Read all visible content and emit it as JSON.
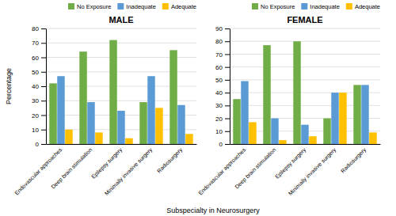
{
  "chart_data": [
    {
      "type": "bar",
      "title": "MALE",
      "xlabel": "Subspecialty in Neurosurgery",
      "ylabel": "Percentage",
      "categories": [
        "Endovascular approaches",
        "Deep brain stimulation",
        "Epilepsy surgery",
        "Minimally invasive surgery",
        "Radiosurgery"
      ],
      "series": [
        {
          "name": "No Exposure",
          "color": "#70ad47",
          "values": [
            42,
            64,
            72,
            29,
            65
          ]
        },
        {
          "name": "Inadequate",
          "color": "#5b9bd5",
          "values": [
            47,
            29,
            23,
            47,
            27
          ]
        },
        {
          "name": "Adequate",
          "color": "#ffc000",
          "values": [
            10,
            8,
            4,
            25,
            7
          ]
        }
      ],
      "ylim": [
        0,
        80
      ],
      "yticks": [
        0,
        10,
        20,
        30,
        40,
        50,
        60,
        70,
        80
      ],
      "grid": true,
      "legend": "upper right"
    },
    {
      "type": "bar",
      "title": "FEMALE",
      "categories": [
        "Endovascular approaches",
        "Deep brain stimulation",
        "Epilepsy surgery",
        "Minimally invasive surgery",
        "Radiosurgery"
      ],
      "series": [
        {
          "name": "No Exposure",
          "color": "#70ad47",
          "values": [
            35,
            77,
            80,
            20,
            46
          ]
        },
        {
          "name": "Inadequate",
          "color": "#5b9bd5",
          "values": [
            49,
            20,
            15,
            40,
            46
          ]
        },
        {
          "name": "Adequate",
          "color": "#ffc000",
          "values": [
            17,
            3,
            6,
            40,
            9
          ]
        }
      ],
      "ylim": [
        0,
        90
      ],
      "yticks": [
        0,
        10,
        20,
        30,
        40,
        50,
        60,
        70,
        80,
        90
      ],
      "grid": true,
      "legend": "upper right"
    }
  ]
}
